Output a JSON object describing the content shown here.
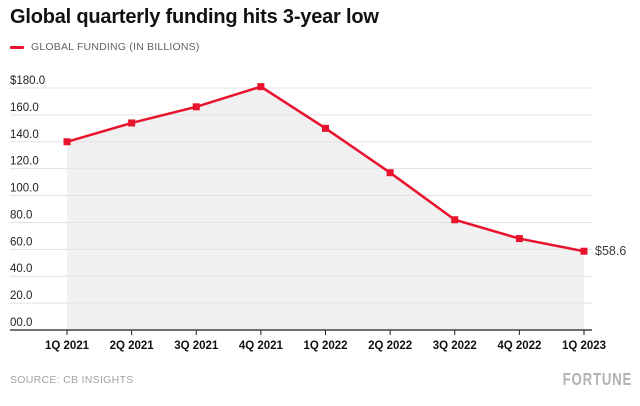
{
  "header": {
    "title": "Global quarterly funding hits 3-year low"
  },
  "legend": {
    "label": "GLOBAL FUNDING (IN BILLIONS)"
  },
  "footer": {
    "source": "SOURCE: CB INSIGHTS",
    "brand": "FORTUNE"
  },
  "chart_data": {
    "type": "line",
    "title": "Global quarterly funding hits 3-year low",
    "series": [
      {
        "name": "GLOBAL FUNDING (IN BILLIONS)",
        "values": [
          140,
          154,
          166,
          181,
          150,
          117,
          82,
          68,
          58.6
        ]
      }
    ],
    "categories": [
      "1Q 2021",
      "2Q 2021",
      "3Q 2021",
      "4Q 2021",
      "1Q 2022",
      "2Q 2022",
      "3Q 2022",
      "4Q 2022",
      "1Q 2023"
    ],
    "y_tick_labels": [
      "$180.0",
      "160.0",
      "140.0",
      "120.0",
      "100.0",
      "80.0",
      "60.0",
      "40.0",
      "20.0",
      "00.0"
    ],
    "y_tick_values": [
      180,
      160,
      140,
      120,
      100,
      80,
      60,
      40,
      20,
      0
    ],
    "ylim": [
      0,
      180
    ],
    "xlabel": "",
    "ylabel": "",
    "last_point_label": "$58.6",
    "grid": true,
    "legend_position": "top-left",
    "marker": "square",
    "colors": {
      "line": "#e8122d",
      "marker": "#e8122d",
      "area_fill": "#f0f0f0",
      "grid": "#e2e2e2",
      "axis": "#1f1f1f",
      "y_tick_text": "#1f1f1f",
      "x_tick_text": "#111111",
      "annotation_text": "#3c3c3c"
    }
  }
}
